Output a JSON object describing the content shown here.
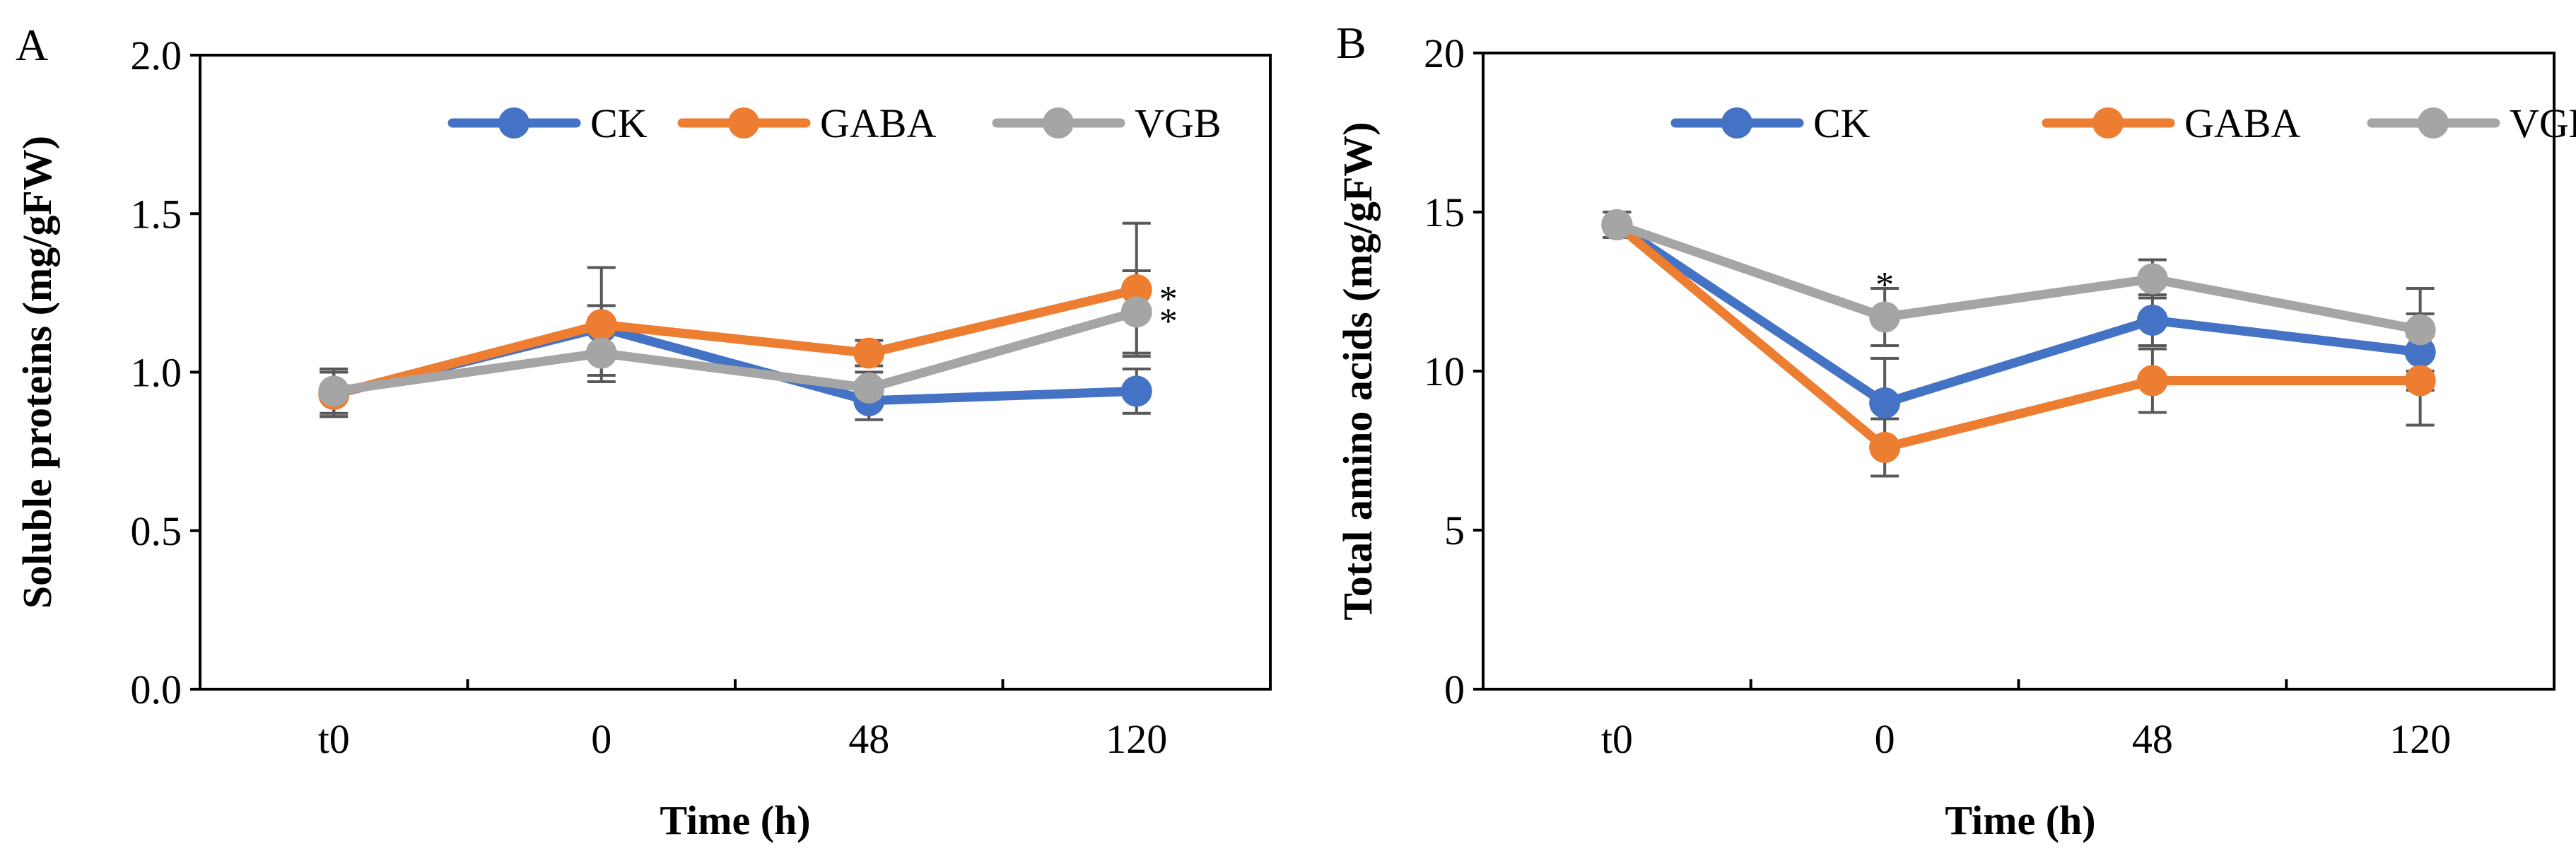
{
  "chart_data": [
    {
      "type": "line",
      "panel_label": "A",
      "xlabel": "Time (h)",
      "ylabel": "Soluble proteins (mg/gFW)",
      "categories": [
        "t0",
        "0",
        "48",
        "120"
      ],
      "ylim": [
        0,
        2
      ],
      "yticks": [
        0,
        0.5,
        1,
        1.5,
        2
      ],
      "ytick_labels": [
        "0.0",
        "0.5",
        "1.0",
        "1.5",
        "2.0"
      ],
      "legend": "top",
      "series": [
        {
          "name": "CK",
          "color": "#4472C4",
          "values": [
            0.93,
            1.14,
            0.91,
            0.94
          ],
          "errors": [
            0.07,
            0.07,
            0.06,
            0.07
          ]
        },
        {
          "name": "GABA",
          "color": "#ED7D31",
          "values": [
            0.93,
            1.15,
            1.06,
            1.26
          ],
          "errors": [
            0.07,
            0.18,
            0.04,
            0.21
          ]
        },
        {
          "name": "VGB",
          "color": "#A5A5A5",
          "values": [
            0.94,
            1.06,
            0.95,
            1.19
          ],
          "errors": [
            0.07,
            0.07,
            0.05,
            0.13
          ]
        }
      ],
      "annotations": [
        {
          "text": "*",
          "series": "GABA",
          "category": "120"
        },
        {
          "text": "*",
          "series": "VGB",
          "category": "120"
        }
      ]
    },
    {
      "type": "line",
      "panel_label": "B",
      "xlabel": "Time (h)",
      "ylabel": "Total amino acids (mg/gFW)",
      "categories": [
        "t0",
        "0",
        "48",
        "120"
      ],
      "ylim": [
        0,
        20
      ],
      "yticks": [
        0,
        5,
        10,
        15,
        20
      ],
      "ytick_labels": [
        "0",
        "5",
        "10",
        "15",
        "20"
      ],
      "legend": "top",
      "series": [
        {
          "name": "CK",
          "color": "#4472C4",
          "values": [
            14.6,
            9.0,
            11.6,
            10.6
          ],
          "errors": [
            0.4,
            1.4,
            0.8,
            1.2
          ]
        },
        {
          "name": "GABA",
          "color": "#ED7D31",
          "values": [
            14.6,
            7.6,
            9.7,
            9.7
          ],
          "errors": [
            0.4,
            0.9,
            1.0,
            1.4
          ]
        },
        {
          "name": "VGB",
          "color": "#A5A5A5",
          "values": [
            14.6,
            11.7,
            12.9,
            11.3
          ],
          "errors": [
            0.4,
            0.9,
            0.6,
            1.3
          ]
        }
      ],
      "annotations": [
        {
          "text": "*",
          "series": "VGB",
          "category": "0"
        }
      ]
    }
  ]
}
